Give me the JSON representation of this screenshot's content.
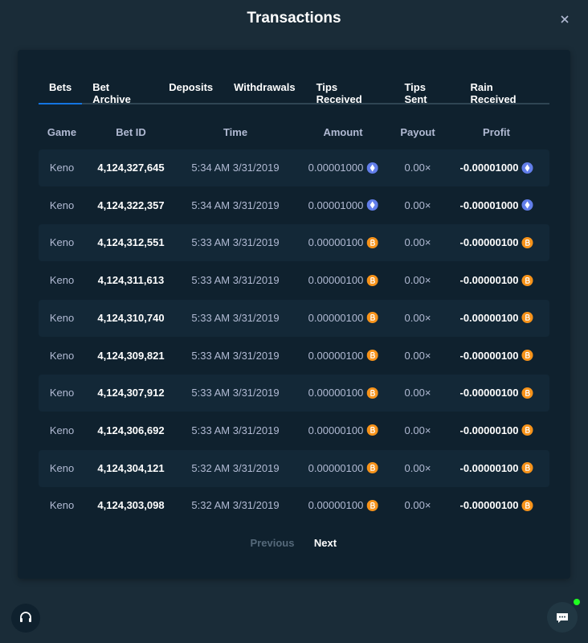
{
  "header": {
    "title": "Transactions"
  },
  "tabs": [
    "Bets",
    "Bet Archive",
    "Deposits",
    "Withdrawals",
    "Tips Received",
    "Tips Sent",
    "Rain Received"
  ],
  "table": {
    "columns": [
      "Game",
      "Bet ID",
      "Time",
      "Amount",
      "Payout",
      "Profit"
    ],
    "rows": [
      {
        "cells": [
          "Keno",
          "4,124,327,645",
          "5:34 AM 3/31/2019",
          "0.00001000",
          "0.00×",
          "-0.00001000"
        ],
        "currency": "eth"
      },
      {
        "cells": [
          "Keno",
          "4,124,322,357",
          "5:34 AM 3/31/2019",
          "0.00001000",
          "0.00×",
          "-0.00001000"
        ],
        "currency": "eth"
      },
      {
        "cells": [
          "Keno",
          "4,124,312,551",
          "5:33 AM 3/31/2019",
          "0.00000100",
          "0.00×",
          "-0.00000100"
        ],
        "currency": "btc"
      },
      {
        "cells": [
          "Keno",
          "4,124,311,613",
          "5:33 AM 3/31/2019",
          "0.00000100",
          "0.00×",
          "-0.00000100"
        ],
        "currency": "btc"
      },
      {
        "cells": [
          "Keno",
          "4,124,310,740",
          "5:33 AM 3/31/2019",
          "0.00000100",
          "0.00×",
          "-0.00000100"
        ],
        "currency": "btc"
      },
      {
        "cells": [
          "Keno",
          "4,124,309,821",
          "5:33 AM 3/31/2019",
          "0.00000100",
          "0.00×",
          "-0.00000100"
        ],
        "currency": "btc"
      },
      {
        "cells": [
          "Keno",
          "4,124,307,912",
          "5:33 AM 3/31/2019",
          "0.00000100",
          "0.00×",
          "-0.00000100"
        ],
        "currency": "btc"
      },
      {
        "cells": [
          "Keno",
          "4,124,306,692",
          "5:33 AM 3/31/2019",
          "0.00000100",
          "0.00×",
          "-0.00000100"
        ],
        "currency": "btc"
      },
      {
        "cells": [
          "Keno",
          "4,124,304,121",
          "5:32 AM 3/31/2019",
          "0.00000100",
          "0.00×",
          "-0.00000100"
        ],
        "currency": "btc"
      },
      {
        "cells": [
          "Keno",
          "4,124,303,098",
          "5:32 AM 3/31/2019",
          "0.00000100",
          "0.00×",
          "-0.00000100"
        ],
        "currency": "btc"
      }
    ]
  },
  "pagination": [
    "Previous",
    "Next"
  ]
}
